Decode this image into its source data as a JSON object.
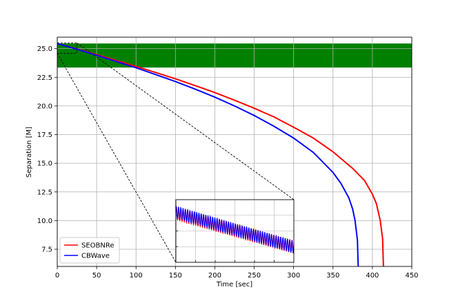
{
  "chart_data": {
    "type": "line",
    "title": "",
    "xlabel": "Time [sec]",
    "ylabel": "Separation [M]",
    "xlim": [
      0,
      450
    ],
    "ylim": [
      6.0,
      26.0
    ],
    "xticks": [
      "0",
      "50",
      "100",
      "150",
      "200",
      "250",
      "300",
      "350",
      "400",
      "450"
    ],
    "yticks": [
      "7.5",
      "10.0",
      "12.5",
      "15.0",
      "17.5",
      "20.0",
      "22.5",
      "25.0"
    ],
    "grid": true,
    "legend_position": "lower-left",
    "shaded_band": {
      "y_range": [
        23.35,
        25.45
      ],
      "color": "#008000"
    },
    "series": [
      {
        "name": "SEOBNRe",
        "color": "#ff0000",
        "x": [
          0,
          25,
          50,
          75,
          100,
          125,
          150,
          175,
          200,
          225,
          250,
          275,
          300,
          325,
          350,
          375,
          390,
          400,
          405,
          410,
          413,
          414
        ],
        "y": [
          25.45,
          24.97,
          24.48,
          23.97,
          23.45,
          22.92,
          22.37,
          21.78,
          21.17,
          20.5,
          19.8,
          19.05,
          18.15,
          17.2,
          16.0,
          14.55,
          13.5,
          12.3,
          11.5,
          10.0,
          8.4,
          6.0
        ]
      },
      {
        "name": "CBWave",
        "color": "#0000ff",
        "x": [
          0,
          25,
          50,
          75,
          100,
          125,
          150,
          175,
          200,
          225,
          250,
          275,
          300,
          325,
          350,
          360,
          370,
          375,
          378,
          381,
          382
        ],
        "y": [
          25.45,
          24.95,
          24.42,
          23.88,
          23.33,
          22.74,
          22.13,
          21.47,
          20.77,
          20.0,
          19.17,
          18.23,
          17.2,
          15.95,
          14.2,
          13.25,
          12.0,
          11.0,
          10.0,
          8.3,
          6.0
        ]
      }
    ],
    "inset": {
      "xlim": [
        0,
        25
      ],
      "ylim": [
        24.6,
        25.5
      ],
      "grid": true,
      "legend": false
    }
  }
}
